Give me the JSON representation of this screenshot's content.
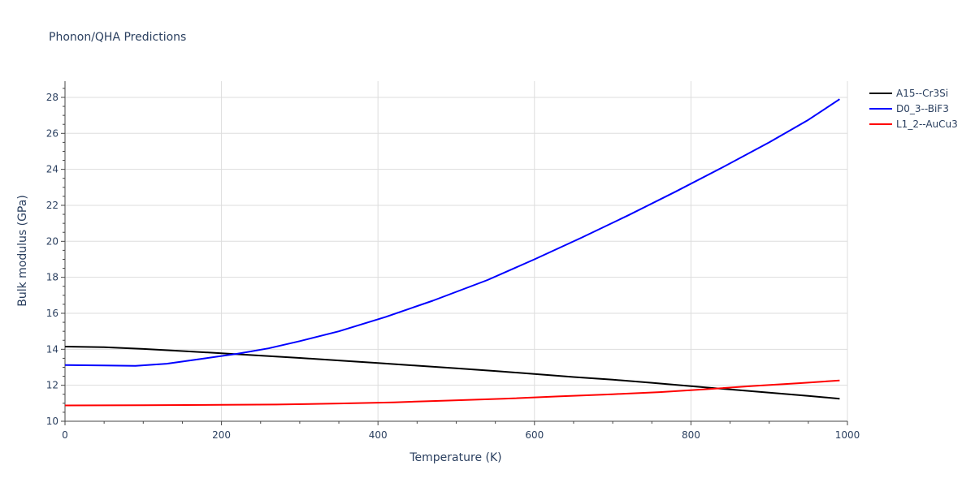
{
  "chart_data": {
    "type": "line",
    "title": "Phonon/QHA Predictions",
    "xlabel": "Temperature (K)",
    "ylabel": "Bulk modulus (GPa)",
    "xlim": [
      0,
      1000
    ],
    "ylim": [
      10,
      28.9
    ],
    "xticks": [
      0,
      200,
      400,
      600,
      800,
      1000
    ],
    "yticks": [
      10,
      12,
      14,
      16,
      18,
      20,
      22,
      24,
      26,
      28
    ],
    "grid": true,
    "legend_position": "top-right",
    "series": [
      {
        "name": "A15--Cr3Si",
        "color": "#000000",
        "x": [
          0,
          50,
          100,
          150,
          200,
          250,
          300,
          350,
          400,
          450,
          500,
          550,
          600,
          650,
          700,
          750,
          800,
          850,
          900,
          950,
          990
        ],
        "y": [
          14.15,
          14.12,
          14.02,
          13.9,
          13.78,
          13.65,
          13.52,
          13.38,
          13.24,
          13.09,
          12.94,
          12.79,
          12.63,
          12.46,
          12.31,
          12.14,
          11.95,
          11.77,
          11.59,
          11.41,
          11.25
        ]
      },
      {
        "name": "D0_3--BiF3",
        "color": "#0000ff",
        "x": [
          0,
          50,
          90,
          130,
          180,
          220,
          260,
          300,
          350,
          410,
          470,
          540,
          600,
          660,
          720,
          780,
          840,
          900,
          950,
          990
        ],
        "y": [
          13.12,
          13.1,
          13.08,
          13.2,
          13.5,
          13.75,
          14.05,
          14.45,
          15.0,
          15.8,
          16.7,
          17.85,
          19.0,
          20.2,
          21.45,
          22.75,
          24.1,
          25.5,
          26.75,
          27.9
        ]
      },
      {
        "name": "L1_2--AuCu3",
        "color": "#ff0000",
        "x": [
          0,
          100,
          200,
          270,
          350,
          420,
          490,
          560,
          630,
          700,
          760,
          820,
          880,
          940,
          990
        ],
        "y": [
          10.88,
          10.89,
          10.91,
          10.93,
          10.99,
          11.05,
          11.15,
          11.25,
          11.38,
          11.5,
          11.62,
          11.78,
          11.96,
          12.12,
          12.27
        ]
      }
    ]
  }
}
